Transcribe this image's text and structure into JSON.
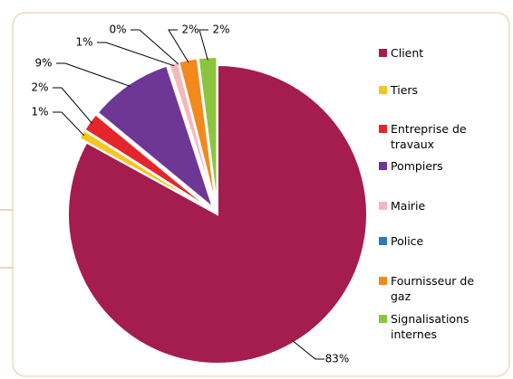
{
  "chart_data": {
    "type": "pie",
    "categories": [
      "Client",
      "Tiers",
      "Entreprise de travaux",
      "Pompiers",
      "Mairie",
      "Police",
      "Fournisseur de gaz",
      "Signalisations internes"
    ],
    "values": [
      83,
      1,
      2,
      9,
      1,
      0,
      2,
      2
    ],
    "value_labels": [
      "83%",
      "1%",
      "2%",
      "9%",
      "1%",
      "0%",
      "2%",
      "2%"
    ],
    "colors": [
      "#a51c4f",
      "#f7c51e",
      "#e4262c",
      "#6e3795",
      "#f4b8bb",
      "#2e78c0",
      "#f28a1b",
      "#8cc440"
    ],
    "legend": "right"
  }
}
